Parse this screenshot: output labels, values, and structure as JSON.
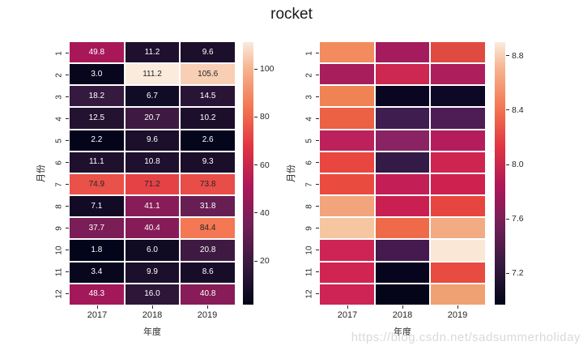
{
  "page": {
    "title": "rocket",
    "watermark": "https://blog.csdn.net/sadsummerholiday",
    "background": "#ffffff",
    "text_color": "#262626",
    "watermark_color": "#d9d9d9"
  },
  "colormap": {
    "name": "rocket",
    "stops": [
      [
        0.0,
        "#03051A"
      ],
      [
        0.15,
        "#35193E"
      ],
      [
        0.3,
        "#701F57"
      ],
      [
        0.45,
        "#AD1759"
      ],
      [
        0.6,
        "#E13342"
      ],
      [
        0.75,
        "#F37651"
      ],
      [
        0.9,
        "#F6B48F"
      ],
      [
        1.0,
        "#FAEBDD"
      ]
    ]
  },
  "chart_data": [
    {
      "type": "heatmap",
      "position": "left",
      "x_categories": [
        "2017",
        "2018",
        "2019"
      ],
      "y_categories": [
        "1",
        "2",
        "3",
        "4",
        "5",
        "6",
        "7",
        "8",
        "9",
        "10",
        "11",
        "12"
      ],
      "xlabel": "年度",
      "ylabel": "月份",
      "annotated": true,
      "values": [
        [
          49.8,
          11.2,
          9.6
        ],
        [
          3.0,
          111.2,
          105.6
        ],
        [
          18.2,
          6.7,
          14.5
        ],
        [
          12.5,
          20.7,
          10.2
        ],
        [
          2.2,
          9.6,
          2.6
        ],
        [
          11.1,
          10.8,
          9.3
        ],
        [
          74.9,
          71.2,
          73.8
        ],
        [
          7.1,
          41.1,
          31.8
        ],
        [
          37.7,
          40.4,
          84.4
        ],
        [
          1.8,
          6.0,
          20.8
        ],
        [
          3.4,
          9.9,
          8.6
        ],
        [
          48.3,
          16.0,
          40.8
        ]
      ],
      "vmin": 1.8,
      "vmax": 111.2,
      "colorbar_ticks": [
        "20",
        "40",
        "60",
        "80",
        "100"
      ],
      "legend_position": "right-colorbar",
      "grid": false
    },
    {
      "type": "heatmap",
      "position": "right",
      "x_categories": [
        "2017",
        "2018",
        "2019"
      ],
      "y_categories": [
        "1",
        "2",
        "3",
        "4",
        "5",
        "6",
        "7",
        "8",
        "9",
        "10",
        "11",
        "12"
      ],
      "xlabel": "年度",
      "ylabel": "月份",
      "annotated": false,
      "cell_colors": [
        [
          "#F28B5E",
          "#A41C5E",
          "#E04B41"
        ],
        [
          "#A81D5C",
          "#CC2851",
          "#AC1F5C"
        ],
        [
          "#F08354",
          "#0A0622",
          "#0D0826"
        ],
        [
          "#EC6144",
          "#3F1D4F",
          "#4E1D55"
        ],
        [
          "#BC215C",
          "#8A2363",
          "#B51C5C"
        ],
        [
          "#E8463F",
          "#341A46",
          "#CE2450"
        ],
        [
          "#E94C3F",
          "#C41E56",
          "#CE2150"
        ],
        [
          "#F2A47C",
          "#C92051",
          "#E6463F"
        ],
        [
          "#F5C6A0",
          "#EE6A48",
          "#F2AB82"
        ],
        [
          "#CE2455",
          "#441A4F",
          "#FAE8D6"
        ],
        [
          "#D02553",
          "#06051D",
          "#E84B3F"
        ],
        [
          "#CD2355",
          "#05051A",
          "#F0A173"
        ]
      ],
      "values_estimated": [
        [
          8.51,
          7.78,
          8.21
        ],
        [
          7.8,
          7.97,
          7.82
        ],
        [
          8.48,
          7.01,
          7.05
        ],
        [
          8.3,
          7.3,
          7.38
        ],
        [
          7.9,
          7.66,
          7.86
        ],
        [
          8.17,
          7.25,
          7.99
        ],
        [
          8.2,
          7.94,
          7.99
        ],
        [
          8.62,
          7.96,
          8.17
        ],
        [
          8.76,
          8.34,
          8.65
        ],
        [
          7.99,
          7.32,
          8.88
        ],
        [
          8.01,
          6.98,
          8.19
        ],
        [
          7.98,
          6.97,
          8.59
        ]
      ],
      "vmin": 6.97,
      "vmax": 8.9,
      "colorbar_ticks": [
        "7.2",
        "7.6",
        "8.0",
        "8.4",
        "8.8"
      ],
      "legend_position": "right-colorbar",
      "grid": false
    }
  ]
}
